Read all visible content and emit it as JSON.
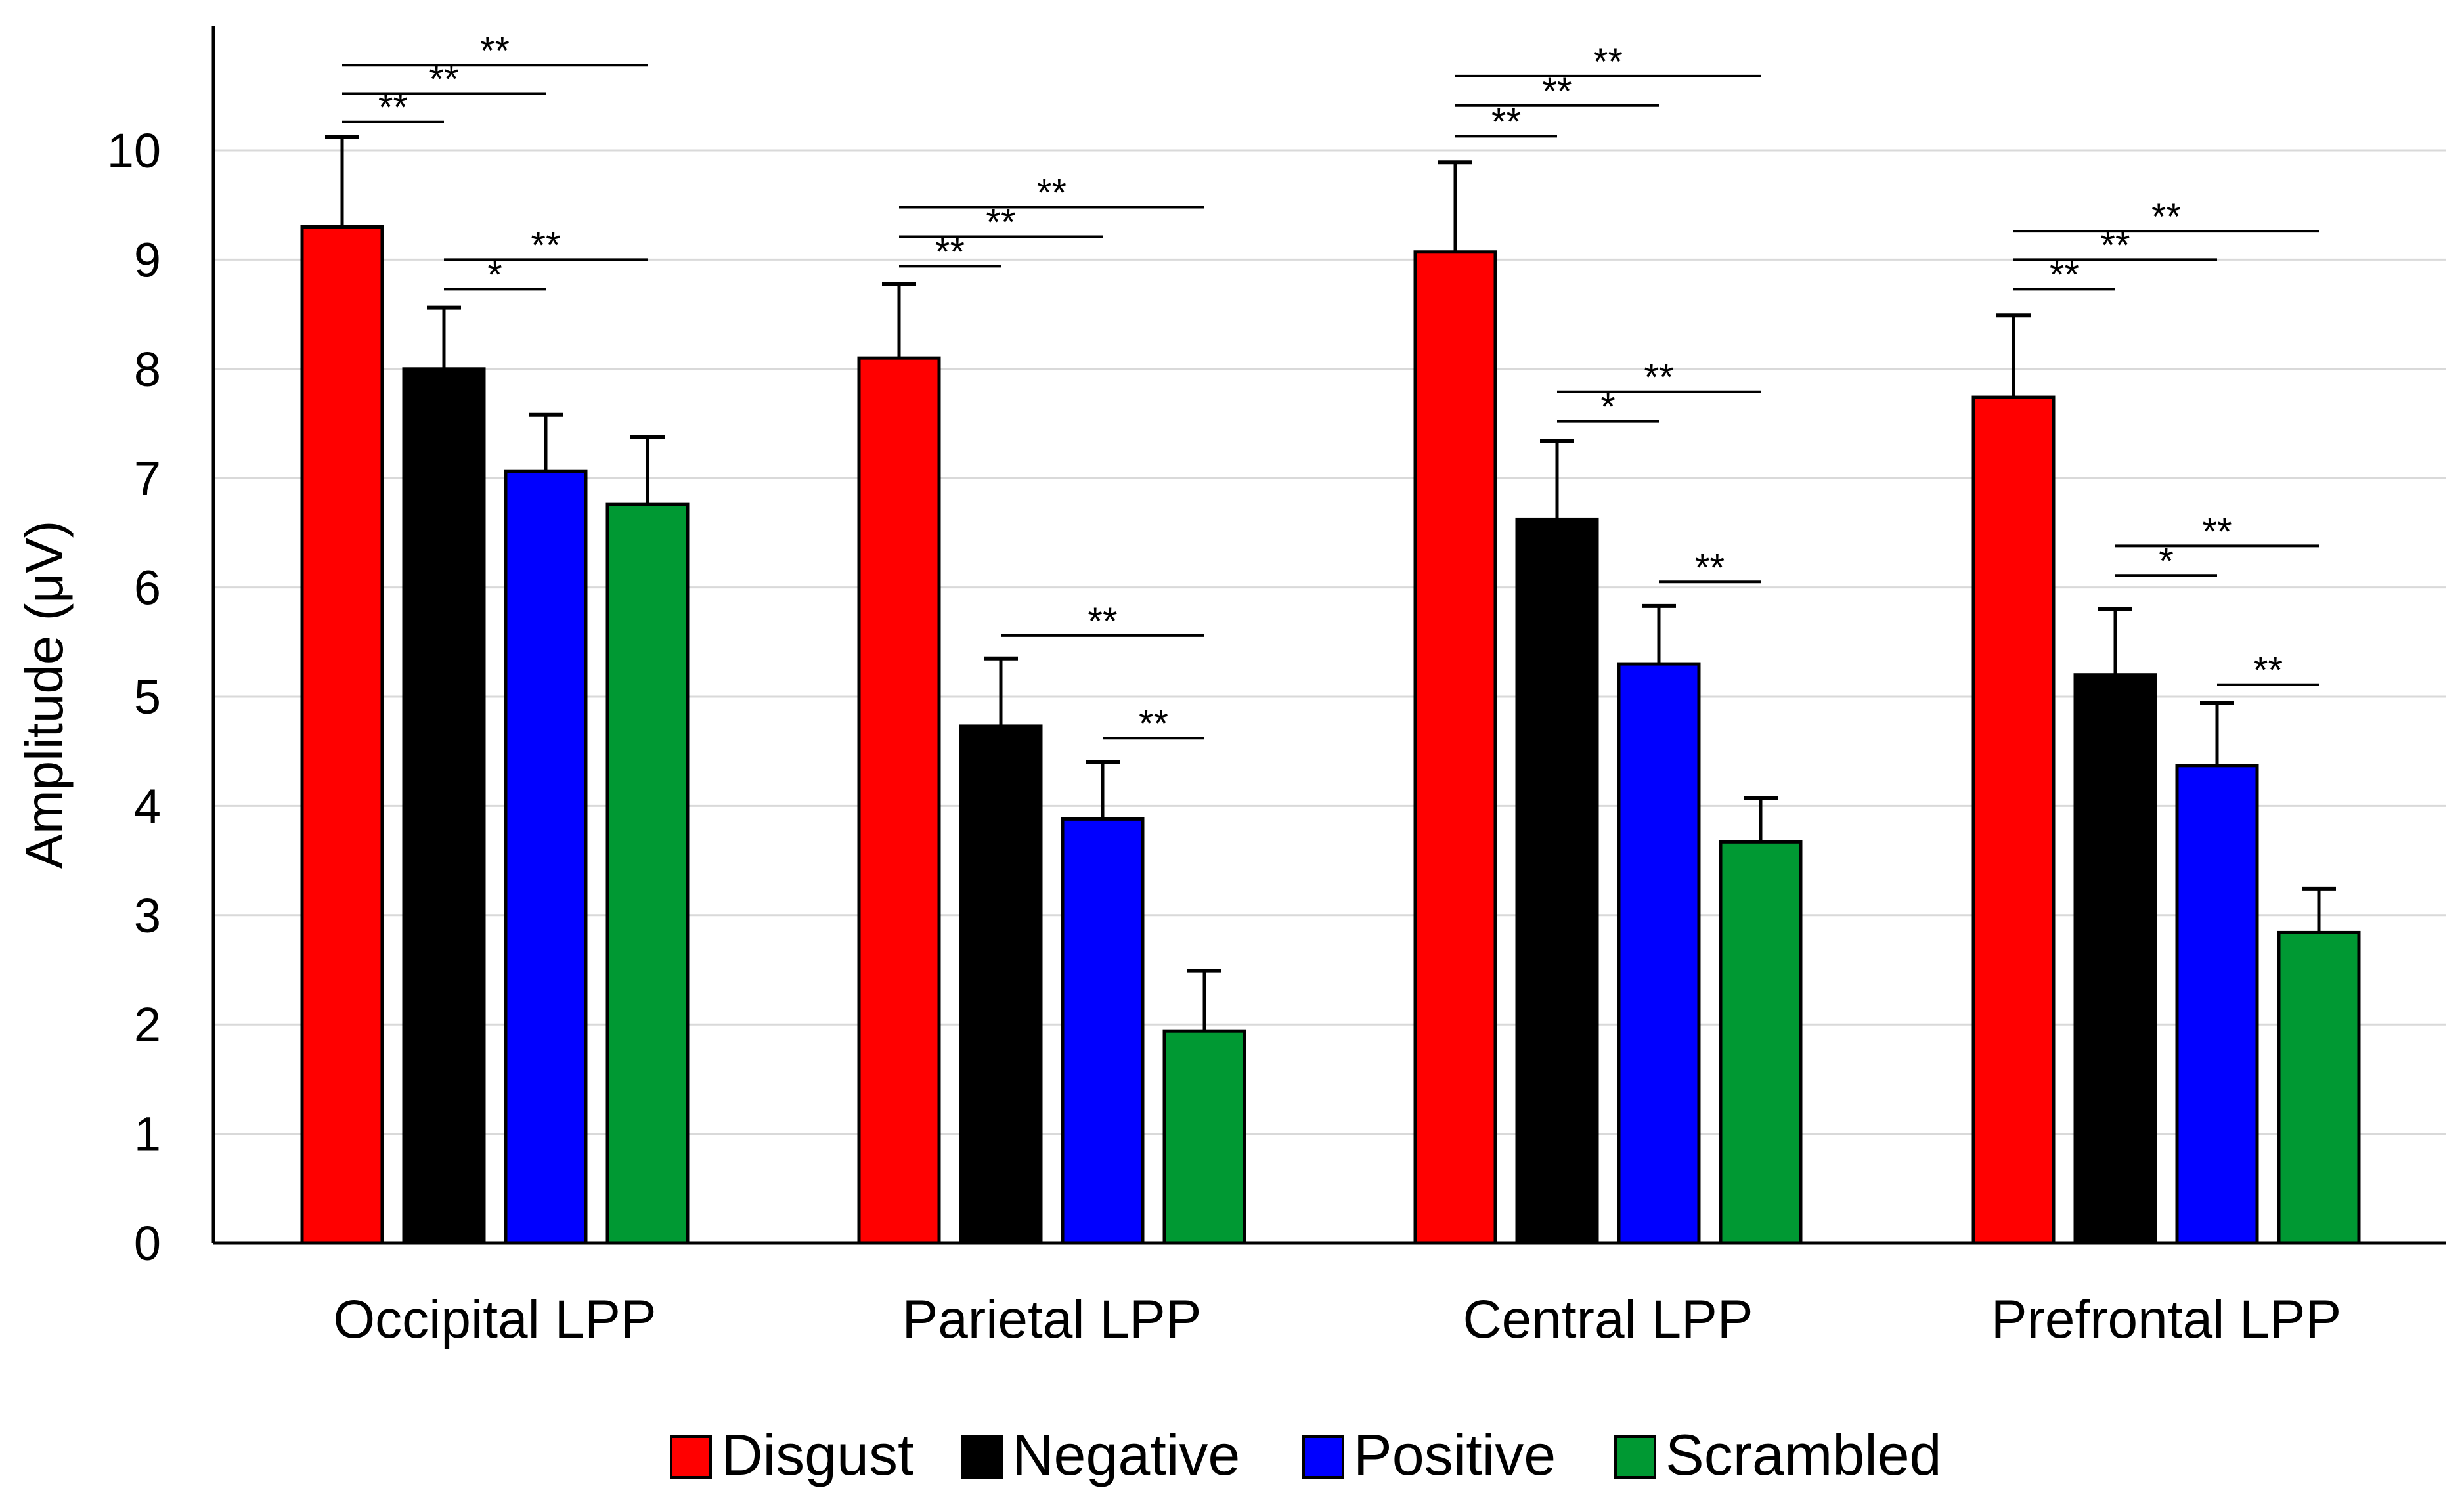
{
  "chart_data": {
    "type": "bar",
    "title": "",
    "xlabel": "",
    "ylabel": "Amplitude (μV)",
    "ylim": [
      0,
      11
    ],
    "yticks": [
      0,
      1,
      2,
      3,
      4,
      5,
      6,
      7,
      8,
      9,
      10
    ],
    "grid": true,
    "legend_position": "bottom-center",
    "categories": [
      "Occipital LPP",
      "Parietal LPP",
      "Central LPP",
      "Prefrontal LPP"
    ],
    "series": [
      {
        "name": "Disgust",
        "color": "#ff0000",
        "values": [
          9.3,
          8.1,
          9.07,
          7.74
        ],
        "errors": [
          0.82,
          0.68,
          0.82,
          0.75
        ]
      },
      {
        "name": "Negative",
        "color": "#000000",
        "values": [
          8.0,
          4.73,
          6.62,
          5.2
        ],
        "errors": [
          0.56,
          0.62,
          0.72,
          0.6
        ]
      },
      {
        "name": "Positive",
        "color": "#0000ff",
        "values": [
          7.06,
          3.88,
          5.3,
          4.37
        ],
        "errors": [
          0.52,
          0.52,
          0.53,
          0.57
        ]
      },
      {
        "name": "Scrambled",
        "color": "#009933",
        "values": [
          6.76,
          1.94,
          3.67,
          2.84
        ],
        "errors": [
          0.62,
          0.55,
          0.4,
          0.4
        ]
      }
    ],
    "significance": [
      {
        "group": 0,
        "from": 0,
        "to": 1,
        "label": "**",
        "y": 10.26
      },
      {
        "group": 0,
        "from": 0,
        "to": 2,
        "label": "**",
        "y": 10.52
      },
      {
        "group": 0,
        "from": 0,
        "to": 3,
        "label": "**",
        "y": 10.78
      },
      {
        "group": 0,
        "from": 1,
        "to": 2,
        "label": "*",
        "y": 8.73
      },
      {
        "group": 0,
        "from": 1,
        "to": 3,
        "label": "**",
        "y": 9.0
      },
      {
        "group": 1,
        "from": 0,
        "to": 1,
        "label": "**",
        "y": 8.94
      },
      {
        "group": 1,
        "from": 0,
        "to": 2,
        "label": "**",
        "y": 9.21
      },
      {
        "group": 1,
        "from": 0,
        "to": 3,
        "label": "**",
        "y": 9.48
      },
      {
        "group": 1,
        "from": 1,
        "to": 3,
        "label": "**",
        "y": 5.56
      },
      {
        "group": 1,
        "from": 2,
        "to": 3,
        "label": "**",
        "y": 4.62
      },
      {
        "group": 2,
        "from": 0,
        "to": 1,
        "label": "**",
        "y": 10.13
      },
      {
        "group": 2,
        "from": 0,
        "to": 2,
        "label": "**",
        "y": 10.41
      },
      {
        "group": 2,
        "from": 0,
        "to": 3,
        "label": "**",
        "y": 10.68
      },
      {
        "group": 2,
        "from": 1,
        "to": 2,
        "label": "*",
        "y": 7.52
      },
      {
        "group": 2,
        "from": 1,
        "to": 3,
        "label": "**",
        "y": 7.79
      },
      {
        "group": 2,
        "from": 2,
        "to": 3,
        "label": "**",
        "y": 6.05
      },
      {
        "group": 3,
        "from": 0,
        "to": 1,
        "label": "**",
        "y": 8.73
      },
      {
        "group": 3,
        "from": 0,
        "to": 2,
        "label": "**",
        "y": 9.0
      },
      {
        "group": 3,
        "from": 0,
        "to": 3,
        "label": "**",
        "y": 9.26
      },
      {
        "group": 3,
        "from": 1,
        "to": 2,
        "label": "*",
        "y": 6.11
      },
      {
        "group": 3,
        "from": 1,
        "to": 3,
        "label": "**",
        "y": 6.38
      },
      {
        "group": 3,
        "from": 2,
        "to": 3,
        "label": "**",
        "y": 5.11
      }
    ]
  }
}
